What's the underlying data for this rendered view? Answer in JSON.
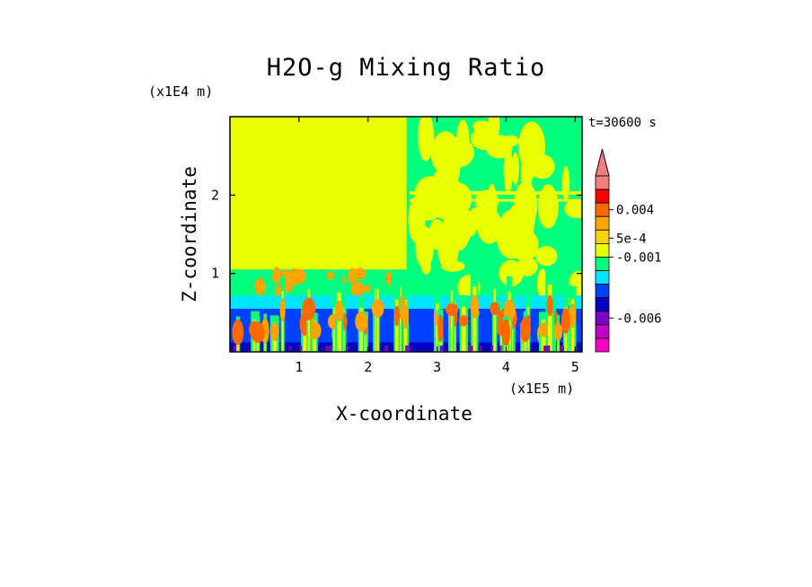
{
  "chart_data": {
    "type": "heatmap",
    "title": "H2O-g Mixing Ratio",
    "xlabel": "X-coordinate",
    "ylabel": "Z-coordinate",
    "x_multiplier": "(x1E5 m)",
    "y_multiplier": "(x1E4 m)",
    "time_label": "t=30600 s",
    "xlim": [
      0,
      5.1
    ],
    "ylim": [
      0,
      3.0
    ],
    "x_ticks": [
      "1",
      "2",
      "3",
      "4",
      "5"
    ],
    "y_ticks": [
      "1",
      "2"
    ],
    "colorbar": {
      "levels_top_to_bottom": [
        "#f08080",
        "#ff0000",
        "#ff6a00",
        "#ffa500",
        "#ffd500",
        "#e8ff00",
        "#00ff7f",
        "#00e5ff",
        "#0040ff",
        "#0000c0",
        "#7a00c8",
        "#c000c0",
        "#ff00c0"
      ],
      "labels": [
        "0.004",
        "5e-4",
        "-0.001",
        "-0.006"
      ],
      "extend_top": true
    },
    "regions": [
      {
        "name": "upper-left background",
        "color": "#e8ff00"
      },
      {
        "name": "upper-right mixed layer",
        "color": "#00ff7f"
      },
      {
        "name": "lower convective layer",
        "color": "#0040ff"
      }
    ]
  }
}
